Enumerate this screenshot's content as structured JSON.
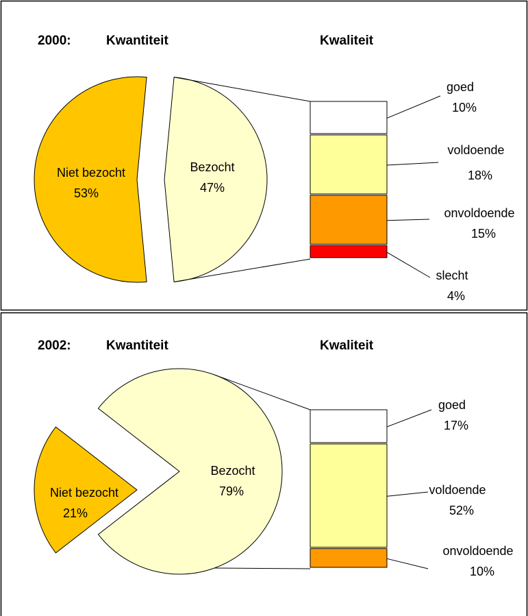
{
  "chart_data": [
    {
      "type": "bar_of_pie",
      "title": "2000:",
      "pie_title": "Kwantiteit",
      "bar_title": "Kwaliteit",
      "pie": {
        "categories": [
          "Niet bezocht",
          "Bezocht"
        ],
        "values": [
          53,
          47
        ],
        "value_labels": [
          "53%",
          "47%"
        ],
        "colors": [
          "#FFC600",
          "#FFFFCC"
        ]
      },
      "bar": {
        "categories": [
          "goed",
          "voldoende",
          "onvoldoende",
          "slecht"
        ],
        "values": [
          10,
          18,
          15,
          4
        ],
        "value_labels": [
          "10%",
          "18%",
          "15%",
          "4%"
        ],
        "colors": [
          "#FFFFFF",
          "#FFFF99",
          "#FF9900",
          "#FF0000"
        ]
      }
    },
    {
      "type": "bar_of_pie",
      "title": "2002:",
      "pie_title": "Kwantiteit",
      "bar_title": "Kwaliteit",
      "pie": {
        "categories": [
          "Niet bezocht",
          "Bezocht"
        ],
        "values": [
          21,
          79
        ],
        "value_labels": [
          "21%",
          "79%"
        ],
        "colors": [
          "#FFC600",
          "#FFFFCC"
        ]
      },
      "bar": {
        "categories": [
          "goed",
          "voldoende",
          "onvoldoende"
        ],
        "values": [
          17,
          52,
          10
        ],
        "value_labels": [
          "17%",
          "52%",
          "10%"
        ],
        "colors": [
          "#FFFFFF",
          "#FFFF99",
          "#FF9900"
        ]
      }
    }
  ]
}
